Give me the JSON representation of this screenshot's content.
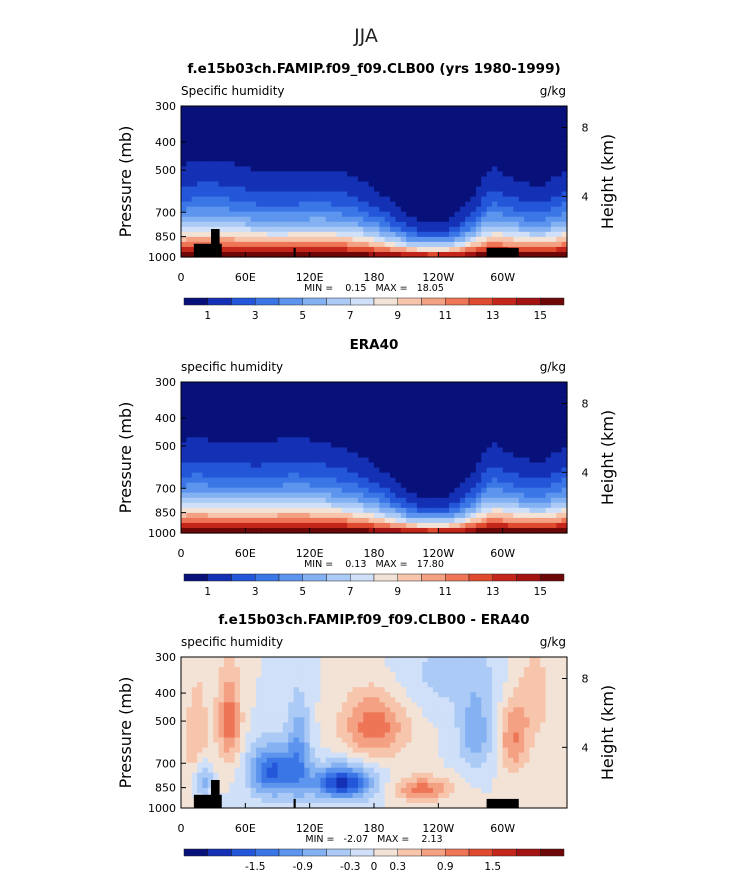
{
  "page_title": "JJA",
  "panel_title_model": "f.e15b03ch.FAMIP.f09_f09.CLB00 (yrs 1980-1999)",
  "panel_title_obs": "ERA40",
  "panel_title_diff": "f.e15b03ch.FAMIP.f09_f09.CLB00 - ERA40",
  "field_label_model": "Specific humidity",
  "field_label_obs": "specific humidity",
  "field_label_diff": "specific humidity",
  "units": "g/kg",
  "y_axis_label": "Pressure (mb)",
  "y2_axis_label": "Height (km)",
  "pressure_ticks": [
    "300",
    "400",
    "500",
    "700",
    "850",
    "1000"
  ],
  "height_ticks": [
    "8",
    "4"
  ],
  "lon_ticks": [
    "0",
    "60E",
    "120E",
    "180",
    "120W",
    "60W"
  ],
  "stats_model": "MIN =    0.15   MAX =   18.05",
  "stats_obs": "MIN =    0.13   MAX =   17.80",
  "stats_diff": "MIN =   -2.07   MAX =    2.13",
  "colorbar_labels_abs": [
    "1",
    "3",
    "5",
    "7",
    "9",
    "11",
    "13",
    "15"
  ],
  "colorbar_labels_diff": [
    "-1.5",
    "-0.9",
    "-0.3",
    "0",
    "0.3",
    "0.9",
    "1.5"
  ],
  "colors": {
    "scale": [
      "#08107a",
      "#1430b4",
      "#2356d8",
      "#3b76e6",
      "#5d95ee",
      "#84b1f2",
      "#abcaf5",
      "#cfe0f8",
      "#f3e3d6",
      "#f7c5ac",
      "#f4a083",
      "#ee7556",
      "#e04a2e",
      "#c4261b",
      "#a31312",
      "#6e0707"
    ],
    "land": "#000000"
  },
  "chart_data": [
    {
      "type": "heatmap",
      "title": "f.e15b03ch.FAMIP.f09_f09.CLB00 (yrs 1980-1999)",
      "field": "Specific humidity",
      "units": "g/kg",
      "ylabel": "Pressure (mb)",
      "y2label": "Height (km)",
      "ylim_pressure": [
        1000,
        300
      ],
      "xticks": [
        "0",
        "60E",
        "120E",
        "180",
        "120W",
        "60W"
      ],
      "min": 0.15,
      "max": 18.05,
      "contour_levels": [
        0,
        1,
        2,
        3,
        4,
        5,
        6,
        7,
        8,
        9,
        10,
        11,
        12,
        13,
        14,
        15,
        16
      ]
    },
    {
      "type": "heatmap",
      "title": "ERA40",
      "field": "specific humidity",
      "units": "g/kg",
      "ylabel": "Pressure (mb)",
      "y2label": "Height (km)",
      "ylim_pressure": [
        1000,
        300
      ],
      "xticks": [
        "0",
        "60E",
        "120E",
        "180",
        "120W",
        "60W"
      ],
      "min": 0.13,
      "max": 17.8,
      "contour_levels": [
        0,
        1,
        2,
        3,
        4,
        5,
        6,
        7,
        8,
        9,
        10,
        11,
        12,
        13,
        14,
        15,
        16
      ]
    },
    {
      "type": "heatmap",
      "title": "f.e15b03ch.FAMIP.f09_f09.CLB00 - ERA40",
      "field": "specific humidity",
      "units": "g/kg",
      "ylabel": "Pressure (mb)",
      "y2label": "Height (km)",
      "ylim_pressure": [
        1000,
        300
      ],
      "xticks": [
        "0",
        "60E",
        "120E",
        "180",
        "120W",
        "60W"
      ],
      "min": -2.07,
      "max": 2.13,
      "contour_levels": [
        -2.1,
        -1.8,
        -1.5,
        -1.2,
        -0.9,
        -0.6,
        -0.3,
        0,
        0.3,
        0.6,
        0.9,
        1.2,
        1.5,
        1.8,
        2.1
      ]
    }
  ]
}
